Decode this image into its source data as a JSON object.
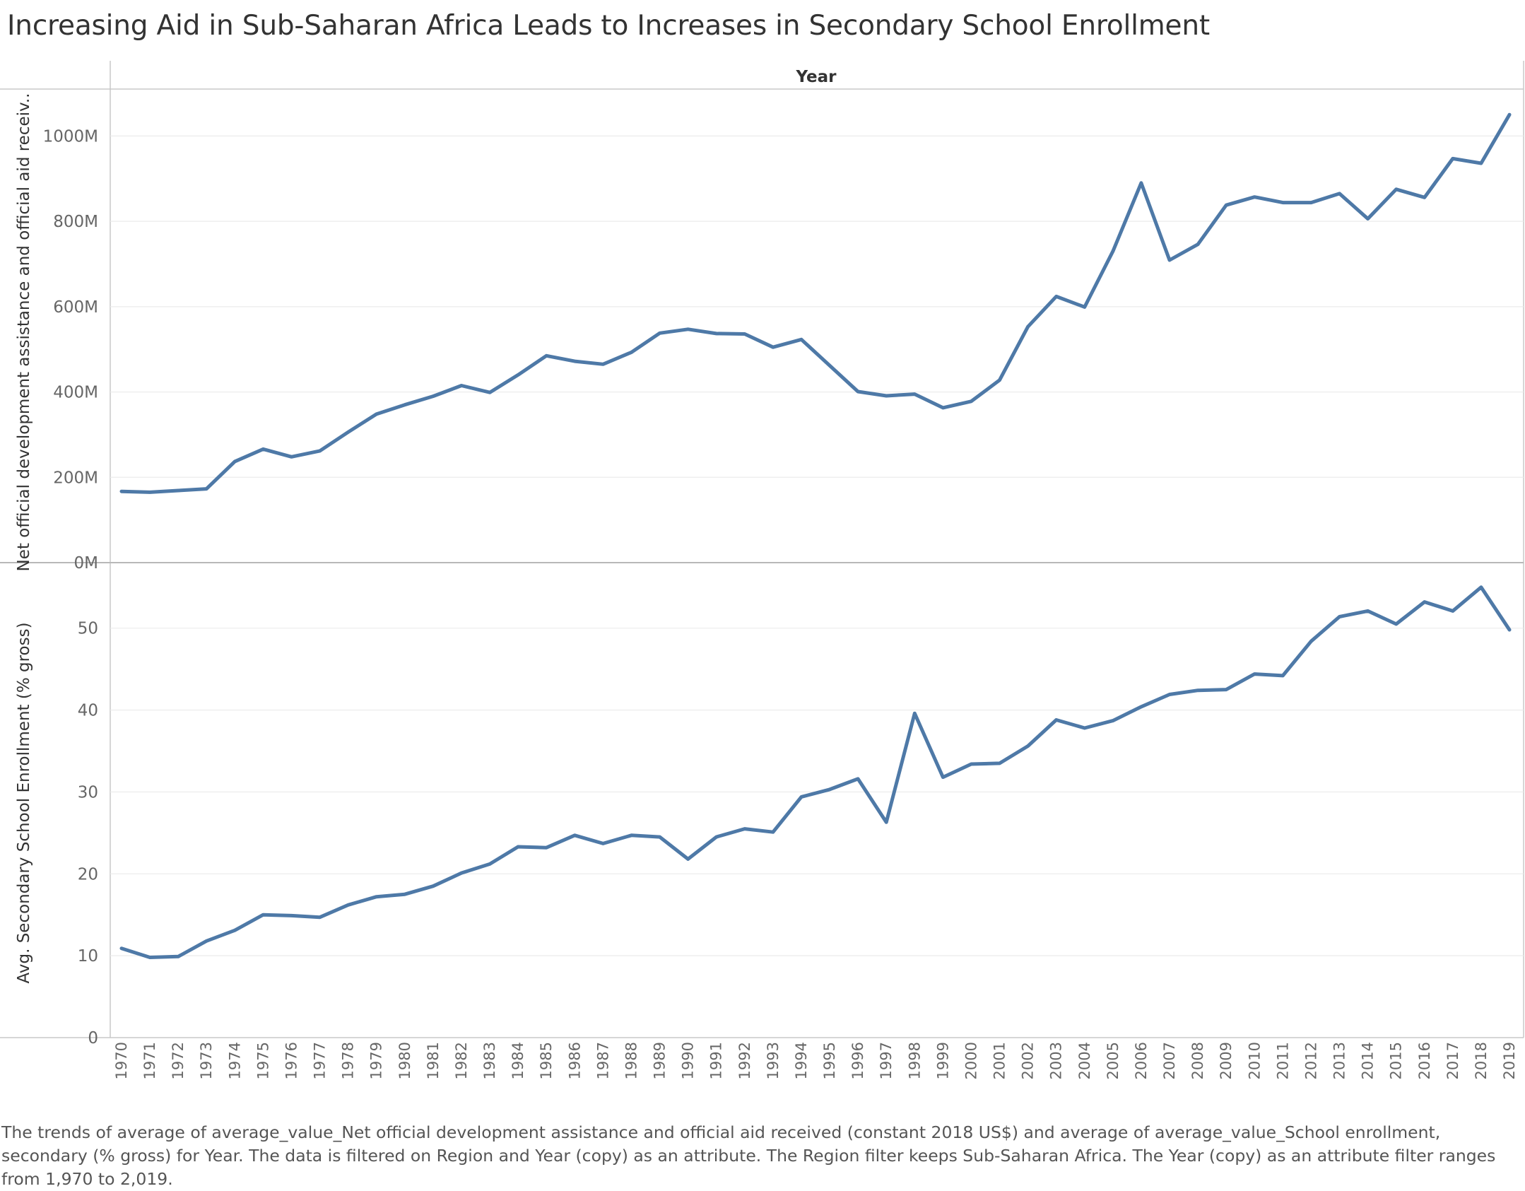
{
  "title": "Increasing Aid in Sub-Saharan Africa Leads to Increases in Secondary School Enrollment",
  "caption": "The trends of average of average_value_Net official development assistance and official aid received (constant 2018 US$) and average of average_value_School enrollment, secondary (% gross) for Year. The data is filtered on Region and Year (copy) as an attribute. The Region filter keeps Sub-Saharan Africa. The Year (copy) as an attribute filter ranges from 1,970 to 2,019.",
  "colors": {
    "line": "#4e79a7",
    "grid": "#ebebeb",
    "axis": "#c8c8c8"
  },
  "chart_data": {
    "type": "line",
    "header": "Year",
    "x": [
      1970,
      1971,
      1972,
      1973,
      1974,
      1975,
      1976,
      1977,
      1978,
      1979,
      1980,
      1981,
      1982,
      1983,
      1984,
      1985,
      1986,
      1987,
      1988,
      1989,
      1990,
      1991,
      1992,
      1993,
      1994,
      1995,
      1996,
      1997,
      1998,
      1999,
      2000,
      2001,
      2002,
      2003,
      2004,
      2005,
      2006,
      2007,
      2008,
      2009,
      2010,
      2011,
      2012,
      2013,
      2014,
      2015,
      2016,
      2017,
      2018,
      2019
    ],
    "panels": [
      {
        "ylabel": "Net official development assistance and official aid receiv..",
        "unit": "M",
        "yticks": [
          0,
          200,
          400,
          600,
          800,
          1000
        ],
        "tick_labels": [
          "0M",
          "200M",
          "400M",
          "600M",
          "800M",
          "1000M"
        ],
        "ylim": [
          0,
          1110
        ],
        "values": [
          167,
          165,
          169,
          173,
          237,
          266,
          248,
          262,
          306,
          348,
          370,
          390,
          415,
          399,
          440,
          485,
          472,
          465,
          493,
          538,
          547,
          537,
          536,
          505,
          523,
          462,
          401,
          391,
          395,
          363,
          378,
          428,
          553,
          624,
          599,
          730,
          890,
          709,
          746,
          838,
          857,
          844,
          844,
          865,
          806,
          875,
          856,
          947,
          936,
          1050
        ]
      },
      {
        "ylabel": "Avg. Secondary School Enrollment (% gross)",
        "unit": "",
        "yticks": [
          0,
          10,
          20,
          30,
          40,
          50
        ],
        "tick_labels": [
          "0",
          "10",
          "20",
          "30",
          "40",
          "50"
        ],
        "ylim": [
          0,
          58
        ],
        "values": [
          10.9,
          9.8,
          9.9,
          11.8,
          13.1,
          15.0,
          14.9,
          14.7,
          16.2,
          17.2,
          17.5,
          18.5,
          20.1,
          21.2,
          23.3,
          23.2,
          24.7,
          23.7,
          24.7,
          24.5,
          21.8,
          24.5,
          25.5,
          25.1,
          29.4,
          30.3,
          31.6,
          26.3,
          39.6,
          31.8,
          33.4,
          33.5,
          35.6,
          38.8,
          37.8,
          38.7,
          40.4,
          41.9,
          42.4,
          42.5,
          44.4,
          44.2,
          48.4,
          51.4,
          52.1,
          50.5,
          53.2,
          52.1,
          55.0,
          49.8
        ]
      }
    ]
  }
}
